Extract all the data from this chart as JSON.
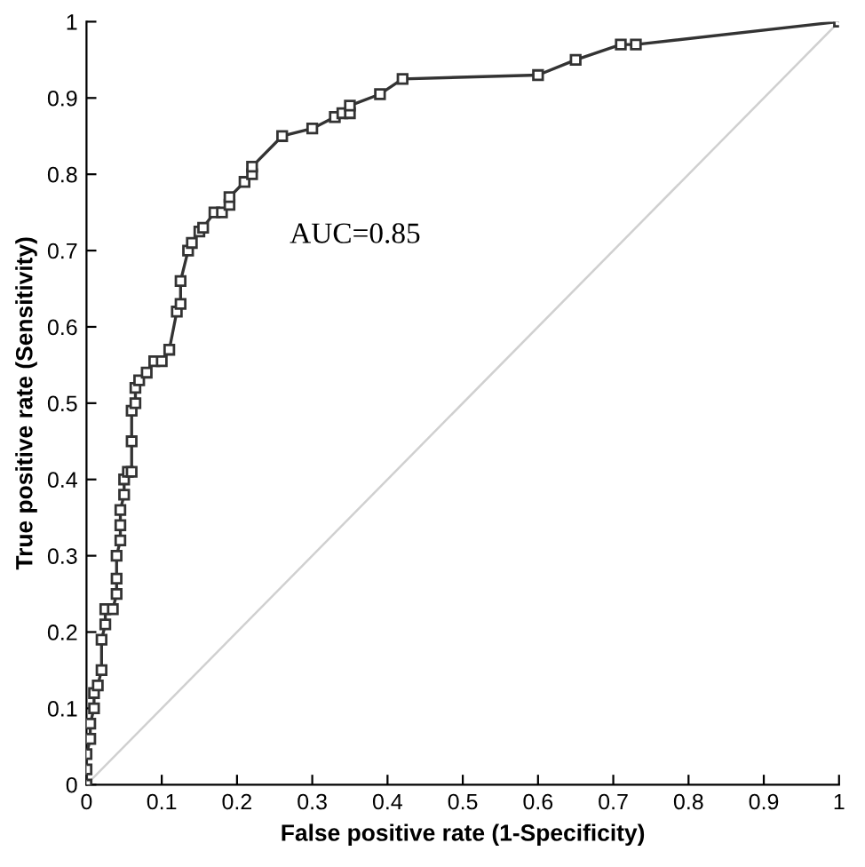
{
  "chart_data": {
    "type": "line",
    "xlabel": "False positive rate (1-Specificity)",
    "ylabel": "True positive rate (Sensitivity)",
    "annotations": [
      "AUC=0.85"
    ],
    "series": [
      {
        "color": "#333333",
        "marker": "square",
        "x": [
          0,
          0,
          0,
          0.005,
          0.005,
          0.01,
          0.01,
          0.015,
          0.02,
          0.02,
          0.025,
          0.025,
          0.035,
          0.04,
          0.04,
          0.04,
          0.045,
          0.045,
          0.045,
          0.05,
          0.05,
          0.055,
          0.06,
          0.06,
          0.06,
          0.065,
          0.065,
          0.07,
          0.08,
          0.09,
          0.1,
          0.11,
          0.12,
          0.125,
          0.125,
          0.135,
          0.14,
          0.15,
          0.155,
          0.17,
          0.18,
          0.19,
          0.19,
          0.21,
          0.22,
          0.22,
          0.26,
          0.3,
          0.33,
          0.34,
          0.35,
          0.35,
          0.39,
          0.42,
          0.6,
          0.65,
          0.71,
          0.73,
          1
        ],
        "values": [
          0,
          0.02,
          0.04,
          0.06,
          0.08,
          0.1,
          0.12,
          0.13,
          0.15,
          0.19,
          0.21,
          0.23,
          0.23,
          0.25,
          0.27,
          0.3,
          0.32,
          0.34,
          0.36,
          0.38,
          0.4,
          0.41,
          0.41,
          0.45,
          0.49,
          0.5,
          0.52,
          0.53,
          0.54,
          0.555,
          0.555,
          0.57,
          0.62,
          0.63,
          0.66,
          0.7,
          0.71,
          0.725,
          0.73,
          0.75,
          0.75,
          0.76,
          0.77,
          0.79,
          0.8,
          0.81,
          0.85,
          0.86,
          0.875,
          0.88,
          0.88,
          0.89,
          0.905,
          0.925,
          0.93,
          0.95,
          0.97,
          0.97,
          1
        ]
      },
      {
        "color": "#d0d0d0",
        "marker": "none",
        "x": [
          0,
          1
        ],
        "values": [
          0,
          1
        ]
      }
    ],
    "xlim": [
      0,
      1
    ],
    "ylim": [
      0,
      1
    ],
    "xticks": [
      0,
      {
        "value": 0.1,
        "label": "0.1"
      },
      {
        "value": 0.2,
        "label": "0.2"
      },
      {
        "value": 0.3,
        "label": "0.3"
      },
      {
        "value": 0.4,
        "label": "0.4"
      },
      {
        "value": 0.5,
        "label": "0.5"
      },
      {
        "value": 0.6,
        "label": "0.6"
      },
      {
        "value": 0.7,
        "label": "0.7"
      },
      {
        "value": 0.8,
        "label": "0.8"
      },
      {
        "value": 0.9,
        "label": "0.9"
      },
      1
    ],
    "yticks": [
      0,
      {
        "value": 0.1,
        "label": "0.1"
      },
      {
        "value": 0.2,
        "label": "0.2"
      },
      {
        "value": 0.3,
        "label": "0.3"
      },
      {
        "value": 0.4,
        "label": "0.4"
      },
      {
        "value": 0.5,
        "label": "0.5"
      },
      {
        "value": 0.6,
        "label": "0.6"
      },
      {
        "value": 0.7,
        "label": "0.7"
      },
      {
        "value": 0.8,
        "label": "0.8"
      },
      {
        "value": 0.9,
        "label": "0.9"
      },
      1
    ],
    "grid": false,
    "legend": false
  }
}
